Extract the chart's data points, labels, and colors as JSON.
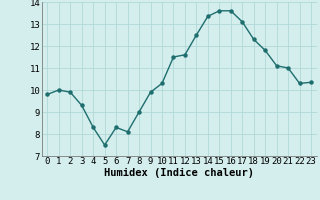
{
  "xlabel": "Humidex (Indice chaleur)",
  "x_values": [
    0,
    1,
    2,
    3,
    4,
    5,
    6,
    7,
    8,
    9,
    10,
    11,
    12,
    13,
    14,
    15,
    16,
    17,
    18,
    19,
    20,
    21,
    22,
    23
  ],
  "y_values": [
    9.8,
    10.0,
    9.9,
    9.3,
    8.3,
    7.5,
    8.3,
    8.1,
    9.0,
    9.9,
    10.3,
    11.5,
    11.6,
    12.5,
    13.35,
    13.6,
    13.6,
    13.1,
    12.3,
    11.8,
    11.1,
    11.0,
    10.3,
    10.35
  ],
  "ylim": [
    7,
    14
  ],
  "yticks": [
    7,
    8,
    9,
    10,
    11,
    12,
    13,
    14
  ],
  "line_color": "#1f6e6e",
  "marker_color": "#1f6e6e",
  "bg_color": "#d4eeee",
  "grid_color": "#b0d8d8",
  "tick_label_fontsize": 6.5,
  "xlabel_fontsize": 7.5
}
